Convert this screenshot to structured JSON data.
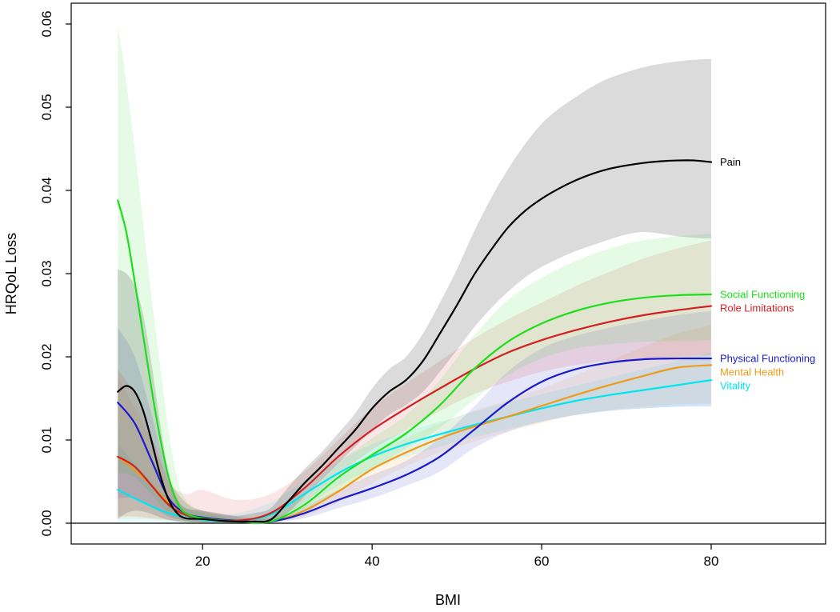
{
  "chart_data": {
    "type": "line",
    "xlabel": "BMI",
    "ylabel": "HRQoL Loss",
    "xlim": [
      4.5,
      93.5
    ],
    "ylim": [
      -0.0025,
      0.0625
    ],
    "x_ticks": [
      "20",
      "40",
      "60",
      "80"
    ],
    "y_ticks": [
      "0.00",
      "0.01",
      "0.02",
      "0.03",
      "0.04",
      "0.05",
      "0.06"
    ],
    "zero_line": true,
    "grid": false,
    "legend": "direct labels at line ends",
    "series": [
      {
        "name": "Vitality",
        "color": "#00e5ee",
        "x": [
          10,
          13,
          16,
          20,
          24,
          28,
          32,
          36,
          40,
          44,
          48,
          52,
          56,
          60,
          64,
          68,
          72,
          76,
          80
        ],
        "values": [
          0.004,
          0.0025,
          0.0012,
          0.0004,
          0.0003,
          0.001,
          0.0035,
          0.006,
          0.008,
          0.0095,
          0.0107,
          0.0118,
          0.0128,
          0.0138,
          0.0147,
          0.0154,
          0.016,
          0.0166,
          0.0172
        ],
        "lower": [
          0.0002,
          0.0002,
          0.0001,
          0.0001,
          0.0001,
          0.0004,
          0.002,
          0.0045,
          0.0065,
          0.008,
          0.0092,
          0.0103,
          0.0113,
          0.0122,
          0.013,
          0.0135,
          0.0138,
          0.014,
          0.0142
        ],
        "upper": [
          0.0095,
          0.006,
          0.003,
          0.0012,
          0.0012,
          0.0025,
          0.005,
          0.0075,
          0.0095,
          0.011,
          0.0122,
          0.0134,
          0.0145,
          0.0155,
          0.0165,
          0.0175,
          0.0185,
          0.0195,
          0.0205
        ]
      },
      {
        "name": "Mental Health",
        "color": "#f09a1a",
        "x": [
          10,
          13,
          16,
          18,
          20,
          24,
          28,
          32,
          36,
          40,
          44,
          48,
          52,
          56,
          60,
          64,
          68,
          72,
          76,
          80
        ],
        "values": [
          0.008,
          0.0055,
          0.0025,
          0.0012,
          0.0007,
          0.0003,
          0.0002,
          0.0015,
          0.0038,
          0.0065,
          0.0085,
          0.0102,
          0.0116,
          0.0128,
          0.0141,
          0.0154,
          0.0166,
          0.0177,
          0.0187,
          0.019
        ],
        "lower": [
          0.0005,
          0.0005,
          0.0003,
          0.0002,
          0.0001,
          0.0001,
          0.0001,
          0.0008,
          0.0025,
          0.0048,
          0.0068,
          0.0085,
          0.0098,
          0.011,
          0.012,
          0.013,
          0.0136,
          0.014,
          0.0143,
          0.0144
        ],
        "upper": [
          0.0175,
          0.012,
          0.0055,
          0.0025,
          0.0015,
          0.0008,
          0.0006,
          0.0025,
          0.0052,
          0.0082,
          0.0102,
          0.012,
          0.0135,
          0.0148,
          0.0162,
          0.0178,
          0.0195,
          0.0212,
          0.0228,
          0.0238
        ]
      },
      {
        "name": "Physical Functioning",
        "color": "#1a1acc",
        "x": [
          10,
          12,
          14,
          16,
          18,
          20,
          24,
          28,
          32,
          36,
          40,
          44,
          48,
          52,
          56,
          60,
          64,
          68,
          72,
          76,
          80
        ],
        "values": [
          0.0145,
          0.012,
          0.0075,
          0.003,
          0.0012,
          0.0007,
          0.0003,
          0.0002,
          0.0012,
          0.0028,
          0.0042,
          0.0058,
          0.008,
          0.0112,
          0.0145,
          0.017,
          0.0185,
          0.0193,
          0.0197,
          0.0198,
          0.0198
        ],
        "lower": [
          0.003,
          0.003,
          0.002,
          0.0008,
          0.0003,
          0.0001,
          0.0001,
          0.0001,
          0.0006,
          0.0018,
          0.003,
          0.0045,
          0.0062,
          0.009,
          0.011,
          0.0122,
          0.013,
          0.0135,
          0.0138,
          0.014,
          0.014
        ],
        "upper": [
          0.0235,
          0.02,
          0.013,
          0.0055,
          0.0025,
          0.0015,
          0.0008,
          0.0006,
          0.002,
          0.004,
          0.0058,
          0.0075,
          0.0102,
          0.014,
          0.0182,
          0.021,
          0.0225,
          0.0235,
          0.0243,
          0.025,
          0.0255
        ]
      },
      {
        "name": "Role Limitations",
        "color": "#d41f1f",
        "x": [
          10,
          12,
          14,
          16,
          18,
          20,
          24,
          28,
          32,
          36,
          40,
          44,
          48,
          52,
          56,
          60,
          64,
          68,
          72,
          76,
          80
        ],
        "values": [
          0.008,
          0.0068,
          0.0045,
          0.0022,
          0.001,
          0.0006,
          0.0003,
          0.0012,
          0.0042,
          0.008,
          0.0112,
          0.0138,
          0.0162,
          0.0185,
          0.0205,
          0.022,
          0.0232,
          0.0242,
          0.025,
          0.0256,
          0.0261
        ],
        "lower": [
          0.0008,
          0.0008,
          0.0006,
          0.0004,
          0.0002,
          0.0001,
          0.0001,
          0.0004,
          0.0025,
          0.0058,
          0.0088,
          0.0112,
          0.0135,
          0.0155,
          0.017,
          0.0182,
          0.019,
          0.0195,
          0.0198,
          0.02,
          0.0202
        ],
        "upper": [
          0.0185,
          0.0155,
          0.0105,
          0.005,
          0.0035,
          0.004,
          0.0028,
          0.0035,
          0.0062,
          0.01,
          0.0138,
          0.0168,
          0.0195,
          0.0222,
          0.0245,
          0.0265,
          0.0285,
          0.0302,
          0.0318,
          0.033,
          0.034
        ]
      },
      {
        "name": "Social Functioning",
        "color": "#1adf1a",
        "x": [
          10,
          11,
          12,
          13,
          14,
          15,
          16,
          17,
          18,
          20,
          24,
          28,
          32,
          36,
          40,
          44,
          48,
          52,
          56,
          60,
          64,
          68,
          72,
          76,
          80
        ],
        "values": [
          0.0388,
          0.035,
          0.029,
          0.0225,
          0.016,
          0.0102,
          0.0055,
          0.0025,
          0.0012,
          0.0006,
          0.0002,
          0.0002,
          0.0022,
          0.0055,
          0.0082,
          0.0108,
          0.0142,
          0.0185,
          0.0218,
          0.024,
          0.0255,
          0.0265,
          0.0271,
          0.0274,
          0.0275
        ],
        "lower": [
          0.006,
          0.006,
          0.0055,
          0.0045,
          0.0035,
          0.0022,
          0.0012,
          0.0006,
          0.0003,
          0.0001,
          0.0001,
          0.0001,
          0.0012,
          0.004,
          0.0065,
          0.009,
          0.0115,
          0.0148,
          0.0178,
          0.0198,
          0.021,
          0.0215,
          0.0218,
          0.0219,
          0.022
        ],
        "upper": [
          0.06,
          0.053,
          0.045,
          0.036,
          0.027,
          0.019,
          0.011,
          0.0055,
          0.0028,
          0.0015,
          0.0006,
          0.0008,
          0.0035,
          0.0072,
          0.0102,
          0.013,
          0.0172,
          0.0225,
          0.0268,
          0.0295,
          0.0315,
          0.033,
          0.034,
          0.0345,
          0.0348
        ]
      },
      {
        "name": "Pain",
        "color": "#000000",
        "x": [
          10,
          11,
          12,
          13,
          14,
          15,
          16,
          17,
          18,
          20,
          22,
          24,
          26,
          28,
          30,
          32,
          34,
          36,
          38,
          40,
          42,
          44,
          46,
          48,
          50,
          52,
          54,
          56,
          58,
          60,
          62,
          64,
          66,
          68,
          70,
          72,
          74,
          76,
          78,
          80
        ],
        "values": [
          0.0158,
          0.0165,
          0.0158,
          0.0135,
          0.0098,
          0.0058,
          0.0028,
          0.0012,
          0.0006,
          0.0005,
          0.0003,
          0.0002,
          0.0002,
          0.0004,
          0.0025,
          0.0048,
          0.0068,
          0.009,
          0.0112,
          0.0138,
          0.0158,
          0.0172,
          0.0195,
          0.0228,
          0.0262,
          0.0298,
          0.0328,
          0.0355,
          0.0375,
          0.039,
          0.0402,
          0.0412,
          0.042,
          0.0426,
          0.043,
          0.0433,
          0.0435,
          0.0436,
          0.0436,
          0.0434
        ],
        "lower": [
          0.0005,
          0.0012,
          0.0015,
          0.0014,
          0.0011,
          0.0007,
          0.0004,
          0.0002,
          0.0001,
          0.0001,
          0.0001,
          0.0001,
          0.0001,
          0.0001,
          0.0012,
          0.0032,
          0.0052,
          0.0072,
          0.0092,
          0.0112,
          0.013,
          0.0142,
          0.0158,
          0.0182,
          0.0208,
          0.0235,
          0.0258,
          0.0278,
          0.0295,
          0.0308,
          0.0318,
          0.0327,
          0.0334,
          0.0341,
          0.0347,
          0.035,
          0.0348,
          0.0345,
          0.0343,
          0.0342
        ],
        "upper": [
          0.0305,
          0.03,
          0.0285,
          0.025,
          0.019,
          0.012,
          0.006,
          0.003,
          0.0018,
          0.0015,
          0.0012,
          0.0009,
          0.0012,
          0.0018,
          0.0042,
          0.0065,
          0.0085,
          0.0108,
          0.0132,
          0.0162,
          0.0185,
          0.02,
          0.0228,
          0.0265,
          0.0305,
          0.035,
          0.039,
          0.0425,
          0.0455,
          0.048,
          0.0498,
          0.0512,
          0.0525,
          0.0535,
          0.0542,
          0.0548,
          0.0552,
          0.0555,
          0.0557,
          0.0558
        ]
      }
    ]
  }
}
